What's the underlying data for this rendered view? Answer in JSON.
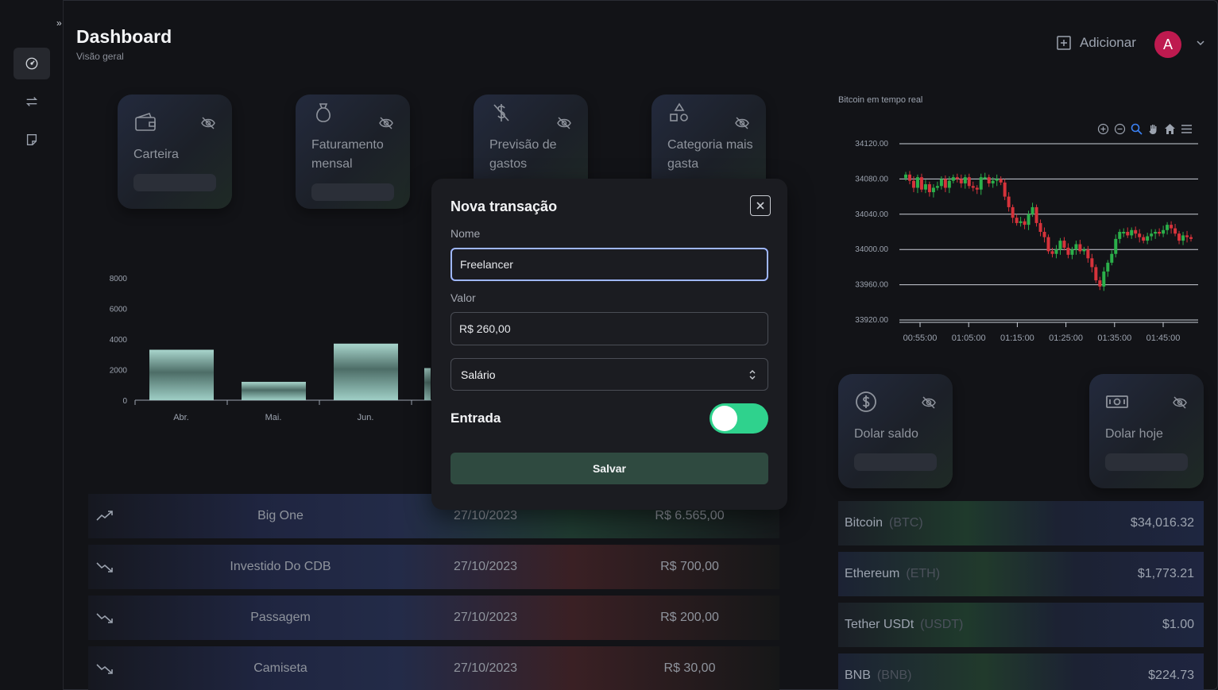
{
  "header": {
    "title": "Dashboard",
    "subtitle": "Visão geral",
    "add_label": "Adicionar",
    "avatar_initial": "A"
  },
  "sidebar": {
    "items": [
      {
        "name": "dashboard",
        "icon": "gauge-icon"
      },
      {
        "name": "transactions",
        "icon": "arrows-exchange-icon"
      },
      {
        "name": "notes",
        "icon": "note-icon"
      }
    ]
  },
  "cards": [
    {
      "label": "Carteira",
      "icon": "wallet-icon"
    },
    {
      "label": "Faturamento mensal",
      "icon": "money-bag-icon"
    },
    {
      "label": "Previsão de gastos",
      "icon": "no-dollar-icon"
    },
    {
      "label": "Categoria mais gasta",
      "icon": "shapes-icon"
    }
  ],
  "dollar_cards": [
    {
      "label": "Dolar saldo",
      "icon": "dollar-circle-icon"
    },
    {
      "label": "Dolar hoje",
      "icon": "banknote-icon"
    }
  ],
  "chart_data": [
    {
      "type": "bar",
      "categories": [
        "Abr.",
        "Mai.",
        "Jun."
      ],
      "values": [
        3300,
        1200,
        3700
      ],
      "yticks": [
        "0",
        "2000",
        "4000",
        "6000",
        "8000"
      ],
      "ylim": [
        0,
        8000
      ],
      "color": "#8fc2b9"
    },
    {
      "type": "candlestick",
      "title": "Bitcoin em tempo real",
      "yticks": [
        "33920.00",
        "33960.00",
        "34000.00",
        "34040.00",
        "34080.00",
        "34120.00"
      ],
      "xticks": [
        "00:55:00",
        "01:05:00",
        "01:15:00",
        "01:25:00",
        "01:35:00",
        "01:45:00"
      ],
      "ylim": [
        33920,
        34120
      ],
      "up_color": "#2bb04a",
      "down_color": "#d6333b",
      "closes": [
        34085,
        34078,
        34070,
        34082,
        34068,
        34074,
        34065,
        34070,
        34072,
        34080,
        34070,
        34078,
        34082,
        34080,
        34075,
        34082,
        34072,
        34070,
        34068,
        34082,
        34082,
        34075,
        34078,
        34080,
        34076,
        34060,
        34048,
        34036,
        34030,
        34032,
        34028,
        34040,
        34048,
        34030,
        34020,
        34014,
        33998,
        33995,
        34000,
        34010,
        34002,
        33994,
        34000,
        34006,
        33998,
        34000,
        33990,
        33980,
        33965,
        33958,
        33975,
        33985,
        33995,
        34012,
        34020,
        34020,
        34016,
        34022,
        34018,
        34014,
        34010,
        34015,
        34018,
        34020,
        34018,
        34022,
        34028,
        34024,
        34018,
        34010,
        34016,
        34014,
        34012
      ]
    }
  ],
  "transactions": [
    {
      "name": "Big One",
      "date": "27/10/2023",
      "amount": "R$ 6.565,00",
      "type": "up"
    },
    {
      "name": "Investido Do CDB",
      "date": "27/10/2023",
      "amount": "R$ 700,00",
      "type": "down"
    },
    {
      "name": "Passagem",
      "date": "27/10/2023",
      "amount": "R$ 200,00",
      "type": "down"
    },
    {
      "name": "Camiseta",
      "date": "27/10/2023",
      "amount": "R$ 30,00",
      "type": "down"
    }
  ],
  "crypto": [
    {
      "name": "Bitcoin",
      "symbol": "(BTC)",
      "price": "$34,016.32"
    },
    {
      "name": "Ethereum",
      "symbol": "(ETH)",
      "price": "$1,773.21"
    },
    {
      "name": "Tether USDt",
      "symbol": "(USDT)",
      "price": "$1.00"
    },
    {
      "name": "BNB",
      "symbol": "(BNB)",
      "price": "$224.73"
    }
  ],
  "modal": {
    "title": "Nova transação",
    "name_label": "Nome",
    "name_value": "Freelancer",
    "value_label": "Valor",
    "value_value": "R$ 260,00",
    "category_value": "Salário",
    "toggle_label": "Entrada",
    "toggle_on": true,
    "save_label": "Salvar"
  }
}
